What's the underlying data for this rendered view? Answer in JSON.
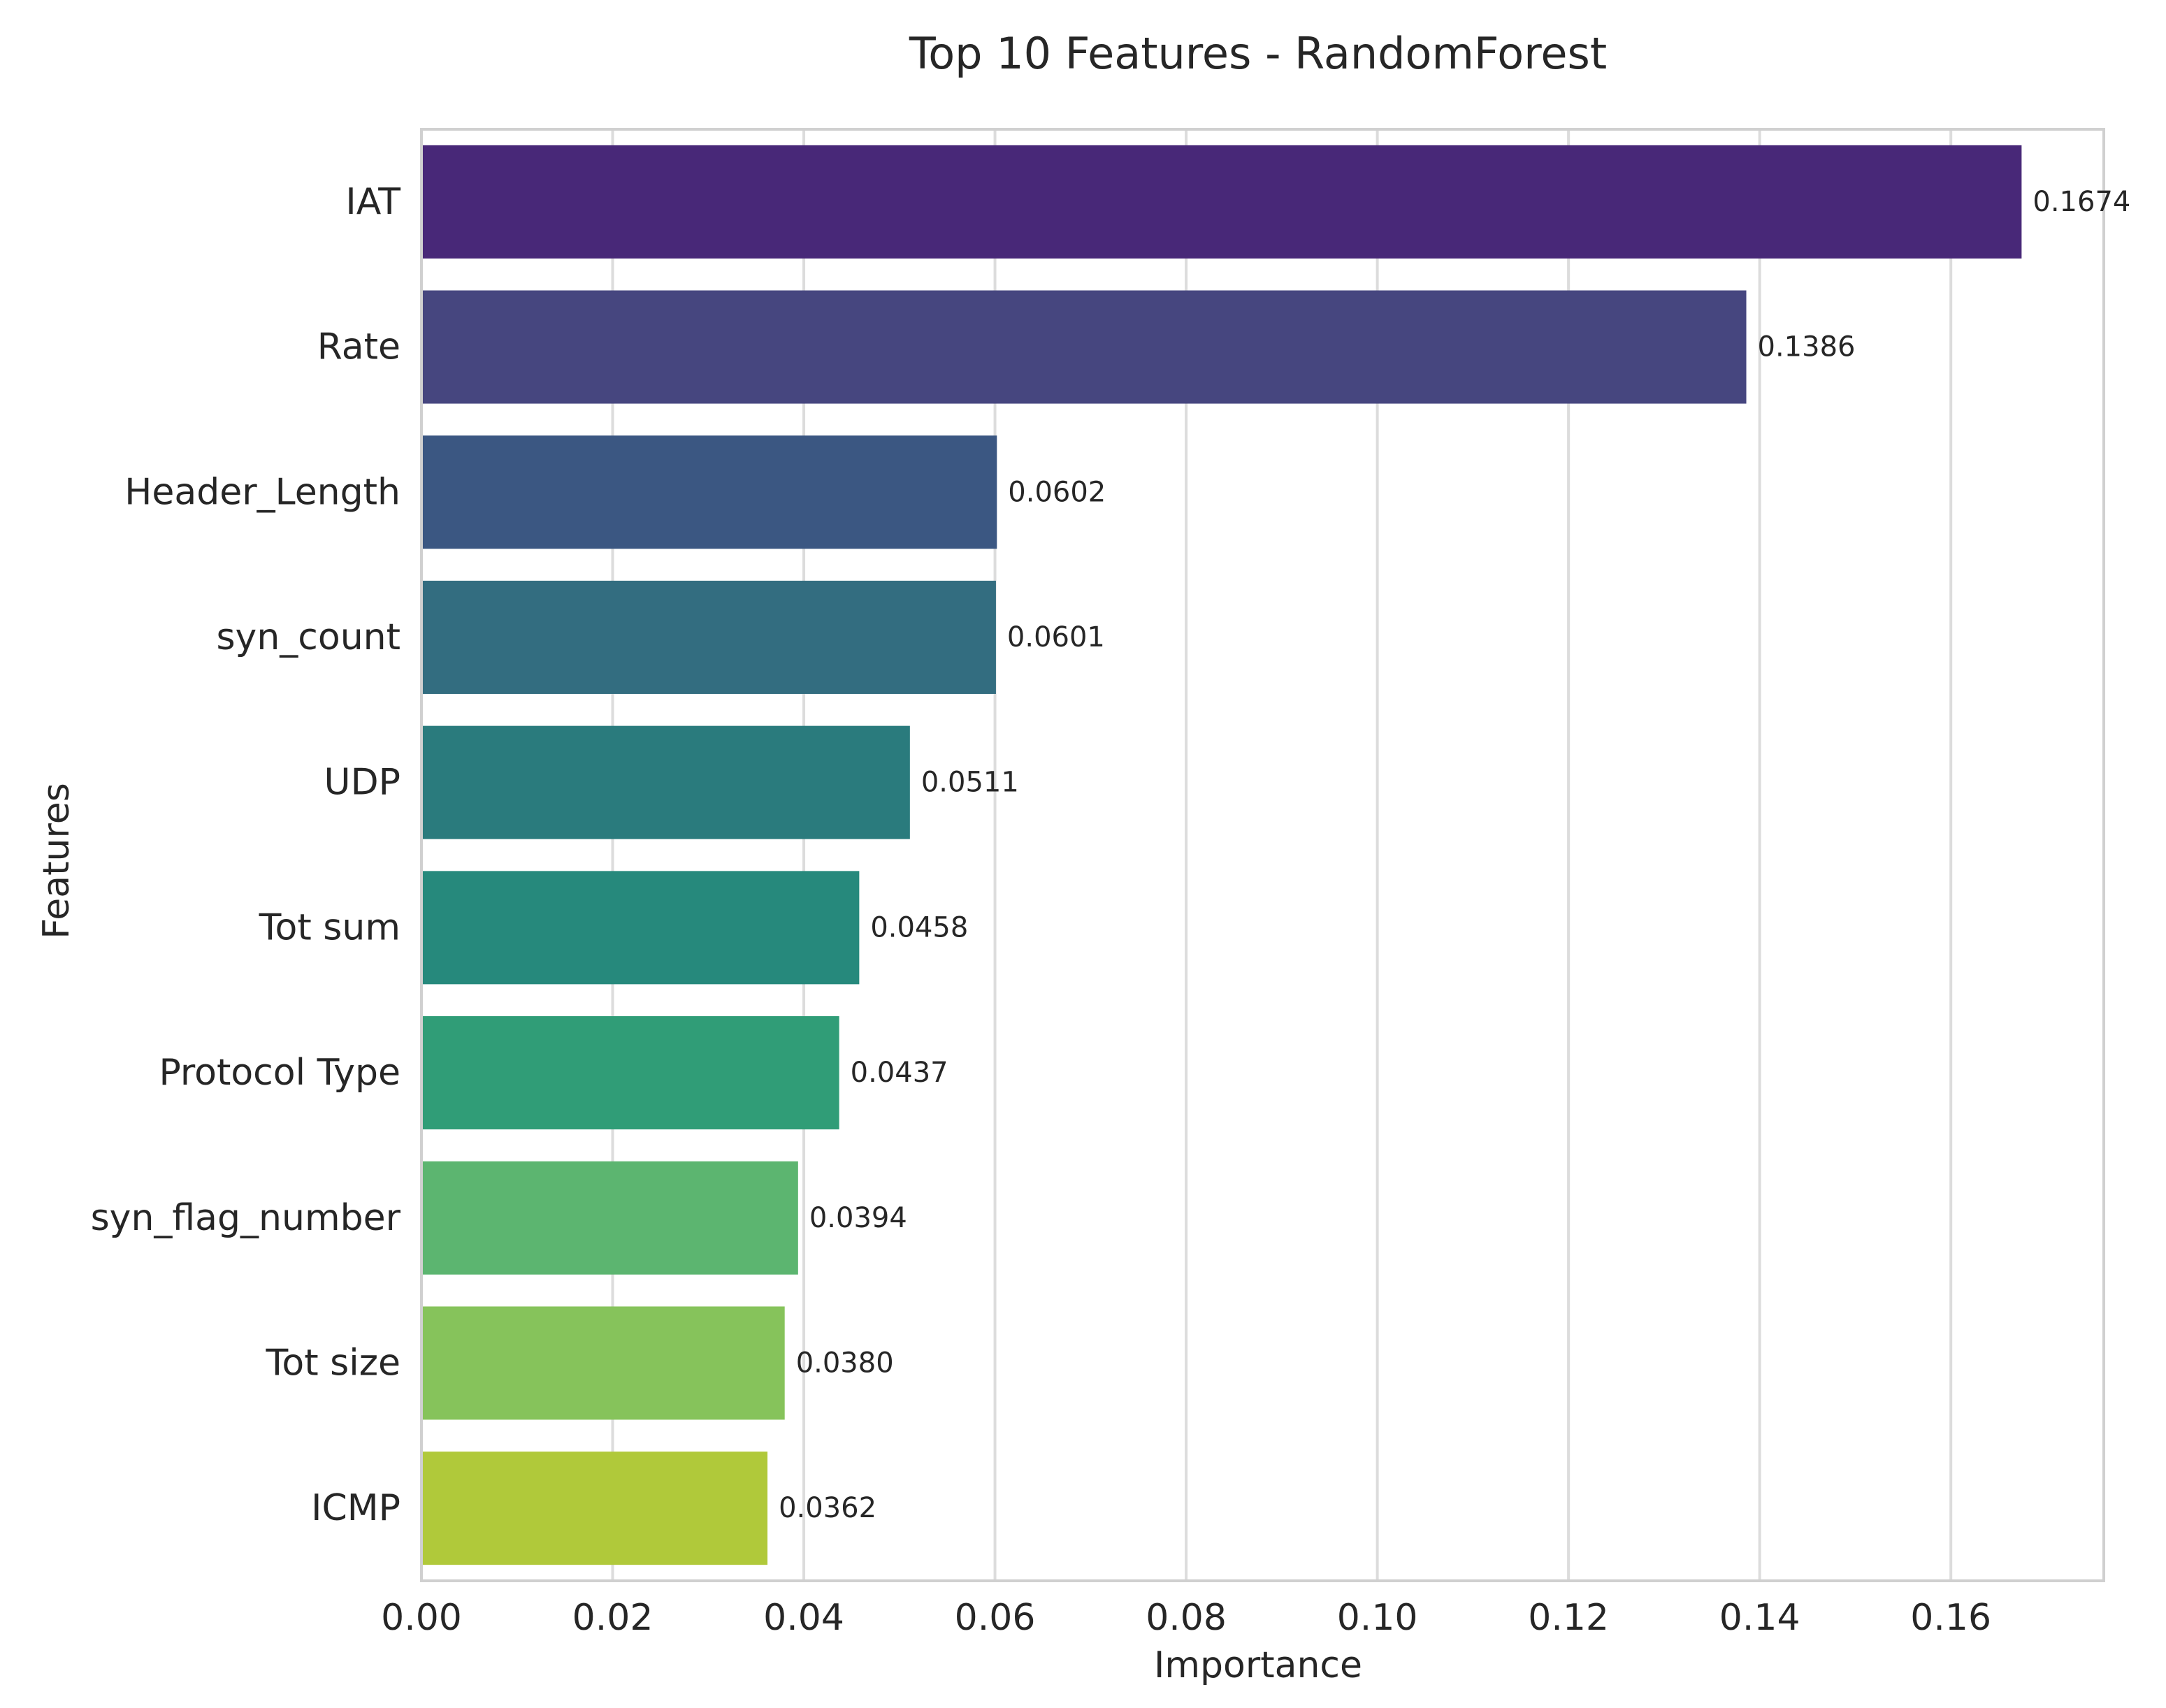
{
  "chart_data": {
    "type": "bar",
    "orientation": "horizontal",
    "title": "Top 10 Features - RandomForest",
    "xlabel": "Importance",
    "ylabel": "Features",
    "categories": [
      "IAT",
      "Rate",
      "Header_Length",
      "syn_count",
      "UDP",
      "Tot sum",
      "Protocol Type",
      "syn_flag_number",
      "Tot size",
      "ICMP"
    ],
    "values": [
      0.1674,
      0.1386,
      0.0602,
      0.0601,
      0.0511,
      0.0458,
      0.0437,
      0.0394,
      0.038,
      0.0362
    ],
    "value_labels": [
      "0.1674",
      "0.1386",
      "0.0602",
      "0.0601",
      "0.0511",
      "0.0458",
      "0.0437",
      "0.0394",
      "0.0380",
      "0.0362"
    ],
    "xlim": [
      0,
      0.176
    ],
    "xticks": [
      0,
      0.02,
      0.04,
      0.06,
      0.08,
      0.1,
      0.12,
      0.14,
      0.16
    ],
    "xtick_labels": [
      "0.00",
      "0.02",
      "0.04",
      "0.06",
      "0.08",
      "0.10",
      "0.12",
      "0.14",
      "0.16"
    ],
    "grid": "vertical",
    "colors": [
      "#482878",
      "#46467f",
      "#3b5782",
      "#336d80",
      "#2a7b7d",
      "#26897c",
      "#309d77",
      "#5cb570",
      "#86c35b",
      "#b0c93a"
    ]
  }
}
